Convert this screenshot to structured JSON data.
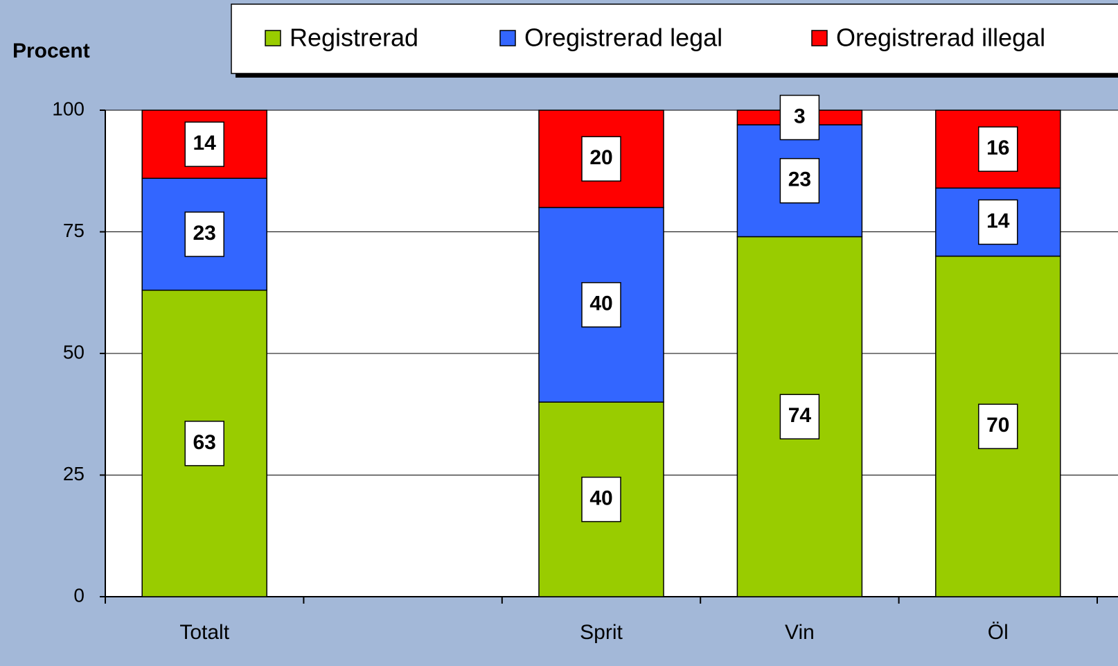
{
  "chart_data": {
    "type": "stacked_bar",
    "y_label": "Procent",
    "categories": [
      "Totalt",
      null,
      "Sprit",
      "Vin",
      "Öl"
    ],
    "series": [
      {
        "name": "Registrerad",
        "color": "#99cc00",
        "values": [
          63,
          null,
          40,
          74,
          70
        ]
      },
      {
        "name": "Oregistrerad legal",
        "color": "#3366ff",
        "values": [
          23,
          null,
          40,
          23,
          14
        ]
      },
      {
        "name": "Oregistrerad illegal",
        "color": "#ff0000",
        "values": [
          14,
          null,
          20,
          3,
          16
        ]
      }
    ],
    "ylim": [
      0,
      100
    ],
    "yticks": [
      0,
      25,
      50,
      75,
      100
    ],
    "grid": true,
    "legend": "top"
  }
}
